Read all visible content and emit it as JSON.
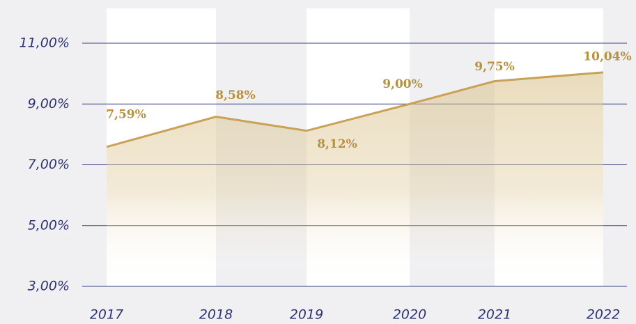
{
  "chart_data": {
    "type": "line",
    "categories": [
      "2017",
      "2018",
      "2019",
      "2020",
      "2021",
      "2022"
    ],
    "series": [
      {
        "color": "#c9a257",
        "values": [
          7.59,
          8.58,
          8.12,
          9.0,
          9.75,
          10.04
        ],
        "value_labels": [
          "7,59%",
          "8,58%",
          "8,12%",
          "9,00%",
          "9,75%",
          "10,04%"
        ]
      }
    ],
    "ylim": [
      3,
      11
    ],
    "yticks": [
      {
        "value": 3,
        "label": "3,00%"
      },
      {
        "value": 5,
        "label": "5,00%"
      },
      {
        "value": 7,
        "label": "7,00%"
      },
      {
        "value": 9,
        "label": "9,00%"
      },
      {
        "value": 11,
        "label": "11,00%"
      }
    ],
    "grid": true,
    "area": true
  }
}
